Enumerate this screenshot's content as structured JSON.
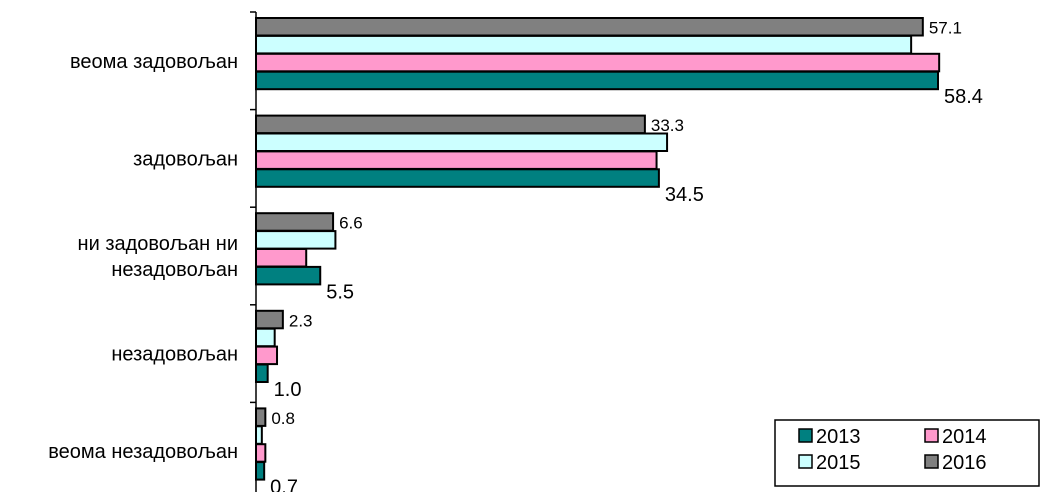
{
  "chart_data": {
    "type": "bar",
    "orientation": "horizontal",
    "categories": [
      "веома задовољан",
      "задовољан",
      "ни задовољан ни незадовољан",
      "незадовољан",
      "веома незадовољан"
    ],
    "category_lines": [
      [
        "веома задовољан"
      ],
      [
        "задовољан"
      ],
      [
        "ни задовољан ни",
        "незадовољан"
      ],
      [
        "незадовољан"
      ],
      [
        "веома незадовољан"
      ]
    ],
    "series": [
      {
        "name": "2013",
        "values": [
          58.4,
          34.5,
          5.5,
          1.0,
          0.7
        ],
        "color": "#008080"
      },
      {
        "name": "2014",
        "values": [
          58.5,
          34.3,
          4.3,
          1.8,
          0.8
        ],
        "color": "#ff99cc"
      },
      {
        "name": "2015",
        "values": [
          56.1,
          35.2,
          6.8,
          1.6,
          0.5
        ],
        "color": "#ccffff"
      },
      {
        "name": "2016",
        "values": [
          57.1,
          33.3,
          6.6,
          2.3,
          0.8
        ],
        "color": "#808080"
      }
    ],
    "labeled": {
      "2016": [
        "57.1",
        "33.3",
        "6.6",
        "2.3",
        "0.8"
      ],
      "2013": [
        "58.4",
        "34.5",
        "5.5",
        "1.0",
        "0.7"
      ]
    },
    "xlim": [
      0,
      70
    ],
    "legend": {
      "position": "bottom-right",
      "order": [
        "2013",
        "2014",
        "2015",
        "2016"
      ]
    },
    "grid": false
  }
}
